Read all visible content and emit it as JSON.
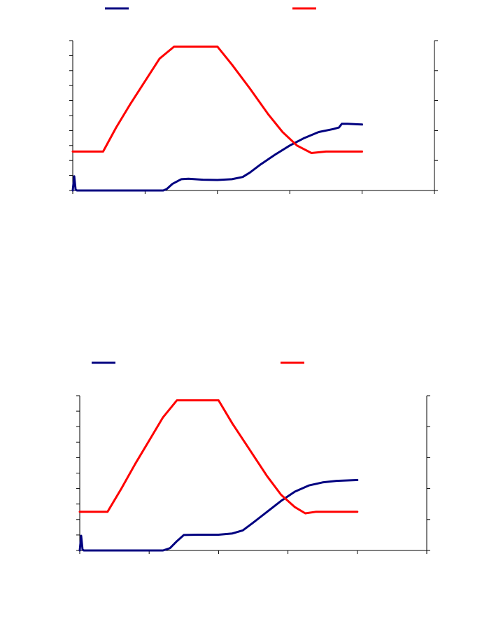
{
  "colors": {
    "series_a": "#000080",
    "series_b": "#ff0000",
    "axis": "#000000"
  },
  "chart_data": [
    {
      "type": "line",
      "title": "",
      "xlabel": "",
      "ylabel": "",
      "y2label": "",
      "xlim": [
        0,
        5
      ],
      "ylim": [
        0,
        10
      ],
      "y2lim": [
        0,
        5
      ],
      "x_ticks": [
        0,
        1,
        2,
        3,
        4,
        5
      ],
      "y_ticks": [
        0,
        1,
        2,
        3,
        4,
        5,
        6,
        7,
        8,
        9,
        10
      ],
      "y2_ticks": [
        0,
        1,
        2,
        3,
        4,
        5
      ],
      "grid": false,
      "legend": "top",
      "series": [
        {
          "axis": "left",
          "color": "#000080",
          "points": [
            [
              0,
              0
            ],
            [
              0.02,
              0.95
            ],
            [
              0.04,
              0.05
            ],
            [
              0.06,
              0
            ],
            [
              1.0,
              0
            ],
            [
              1.25,
              0
            ],
            [
              1.3,
              0.1
            ],
            [
              1.38,
              0.45
            ],
            [
              1.5,
              0.75
            ],
            [
              1.6,
              0.78
            ],
            [
              1.8,
              0.72
            ],
            [
              2.0,
              0.7
            ],
            [
              2.2,
              0.75
            ],
            [
              2.35,
              0.9
            ],
            [
              2.45,
              1.2
            ],
            [
              2.6,
              1.75
            ],
            [
              2.8,
              2.4
            ],
            [
              3.0,
              3.0
            ],
            [
              3.2,
              3.5
            ],
            [
              3.4,
              3.9
            ],
            [
              3.6,
              4.1
            ],
            [
              3.68,
              4.2
            ],
            [
              3.72,
              4.45
            ],
            [
              3.8,
              4.45
            ],
            [
              4.0,
              4.4
            ]
          ]
        },
        {
          "axis": "right",
          "color": "#ff0000",
          "points": [
            [
              0,
              1.3
            ],
            [
              0.42,
              1.3
            ],
            [
              0.6,
              2.1
            ],
            [
              0.8,
              2.9
            ],
            [
              1.0,
              3.65
            ],
            [
              1.2,
              4.4
            ],
            [
              1.4,
              4.8
            ],
            [
              2.0,
              4.8
            ],
            [
              2.2,
              4.2
            ],
            [
              2.45,
              3.4
            ],
            [
              2.7,
              2.55
            ],
            [
              2.9,
              1.95
            ],
            [
              3.1,
              1.5
            ],
            [
              3.3,
              1.25
            ],
            [
              3.5,
              1.3
            ],
            [
              4.0,
              1.3
            ]
          ]
        }
      ]
    },
    {
      "type": "line",
      "title": "",
      "xlabel": "",
      "ylabel": "",
      "y2label": "",
      "xlim": [
        0,
        5
      ],
      "ylim": [
        0,
        10
      ],
      "y2lim": [
        0,
        5
      ],
      "x_ticks": [
        0,
        1,
        2,
        3,
        4,
        5
      ],
      "y_ticks": [
        0,
        1,
        2,
        3,
        4,
        5,
        6,
        7,
        8,
        9,
        10
      ],
      "y2_ticks": [
        0,
        1,
        2,
        3,
        4,
        5
      ],
      "grid": false,
      "legend": "top",
      "series": [
        {
          "axis": "left",
          "color": "#000080",
          "points": [
            [
              0,
              0
            ],
            [
              0.02,
              0.95
            ],
            [
              0.04,
              0.05
            ],
            [
              0.06,
              0
            ],
            [
              1.0,
              0
            ],
            [
              1.2,
              0
            ],
            [
              1.3,
              0.15
            ],
            [
              1.4,
              0.6
            ],
            [
              1.5,
              1.0
            ],
            [
              1.7,
              1.02
            ],
            [
              2.0,
              1.02
            ],
            [
              2.2,
              1.1
            ],
            [
              2.35,
              1.3
            ],
            [
              2.5,
              1.8
            ],
            [
              2.7,
              2.5
            ],
            [
              2.9,
              3.2
            ],
            [
              3.1,
              3.8
            ],
            [
              3.3,
              4.2
            ],
            [
              3.5,
              4.4
            ],
            [
              3.7,
              4.5
            ],
            [
              4.0,
              4.55
            ]
          ]
        },
        {
          "axis": "right",
          "color": "#ff0000",
          "points": [
            [
              0,
              1.25
            ],
            [
              0.4,
              1.25
            ],
            [
              0.6,
              2.0
            ],
            [
              0.8,
              2.8
            ],
            [
              1.0,
              3.55
            ],
            [
              1.2,
              4.3
            ],
            [
              1.4,
              4.85
            ],
            [
              2.0,
              4.85
            ],
            [
              2.2,
              4.1
            ],
            [
              2.45,
              3.25
            ],
            [
              2.7,
              2.4
            ],
            [
              2.9,
              1.8
            ],
            [
              3.1,
              1.4
            ],
            [
              3.25,
              1.2
            ],
            [
              3.4,
              1.25
            ],
            [
              4.0,
              1.25
            ]
          ]
        }
      ]
    }
  ]
}
